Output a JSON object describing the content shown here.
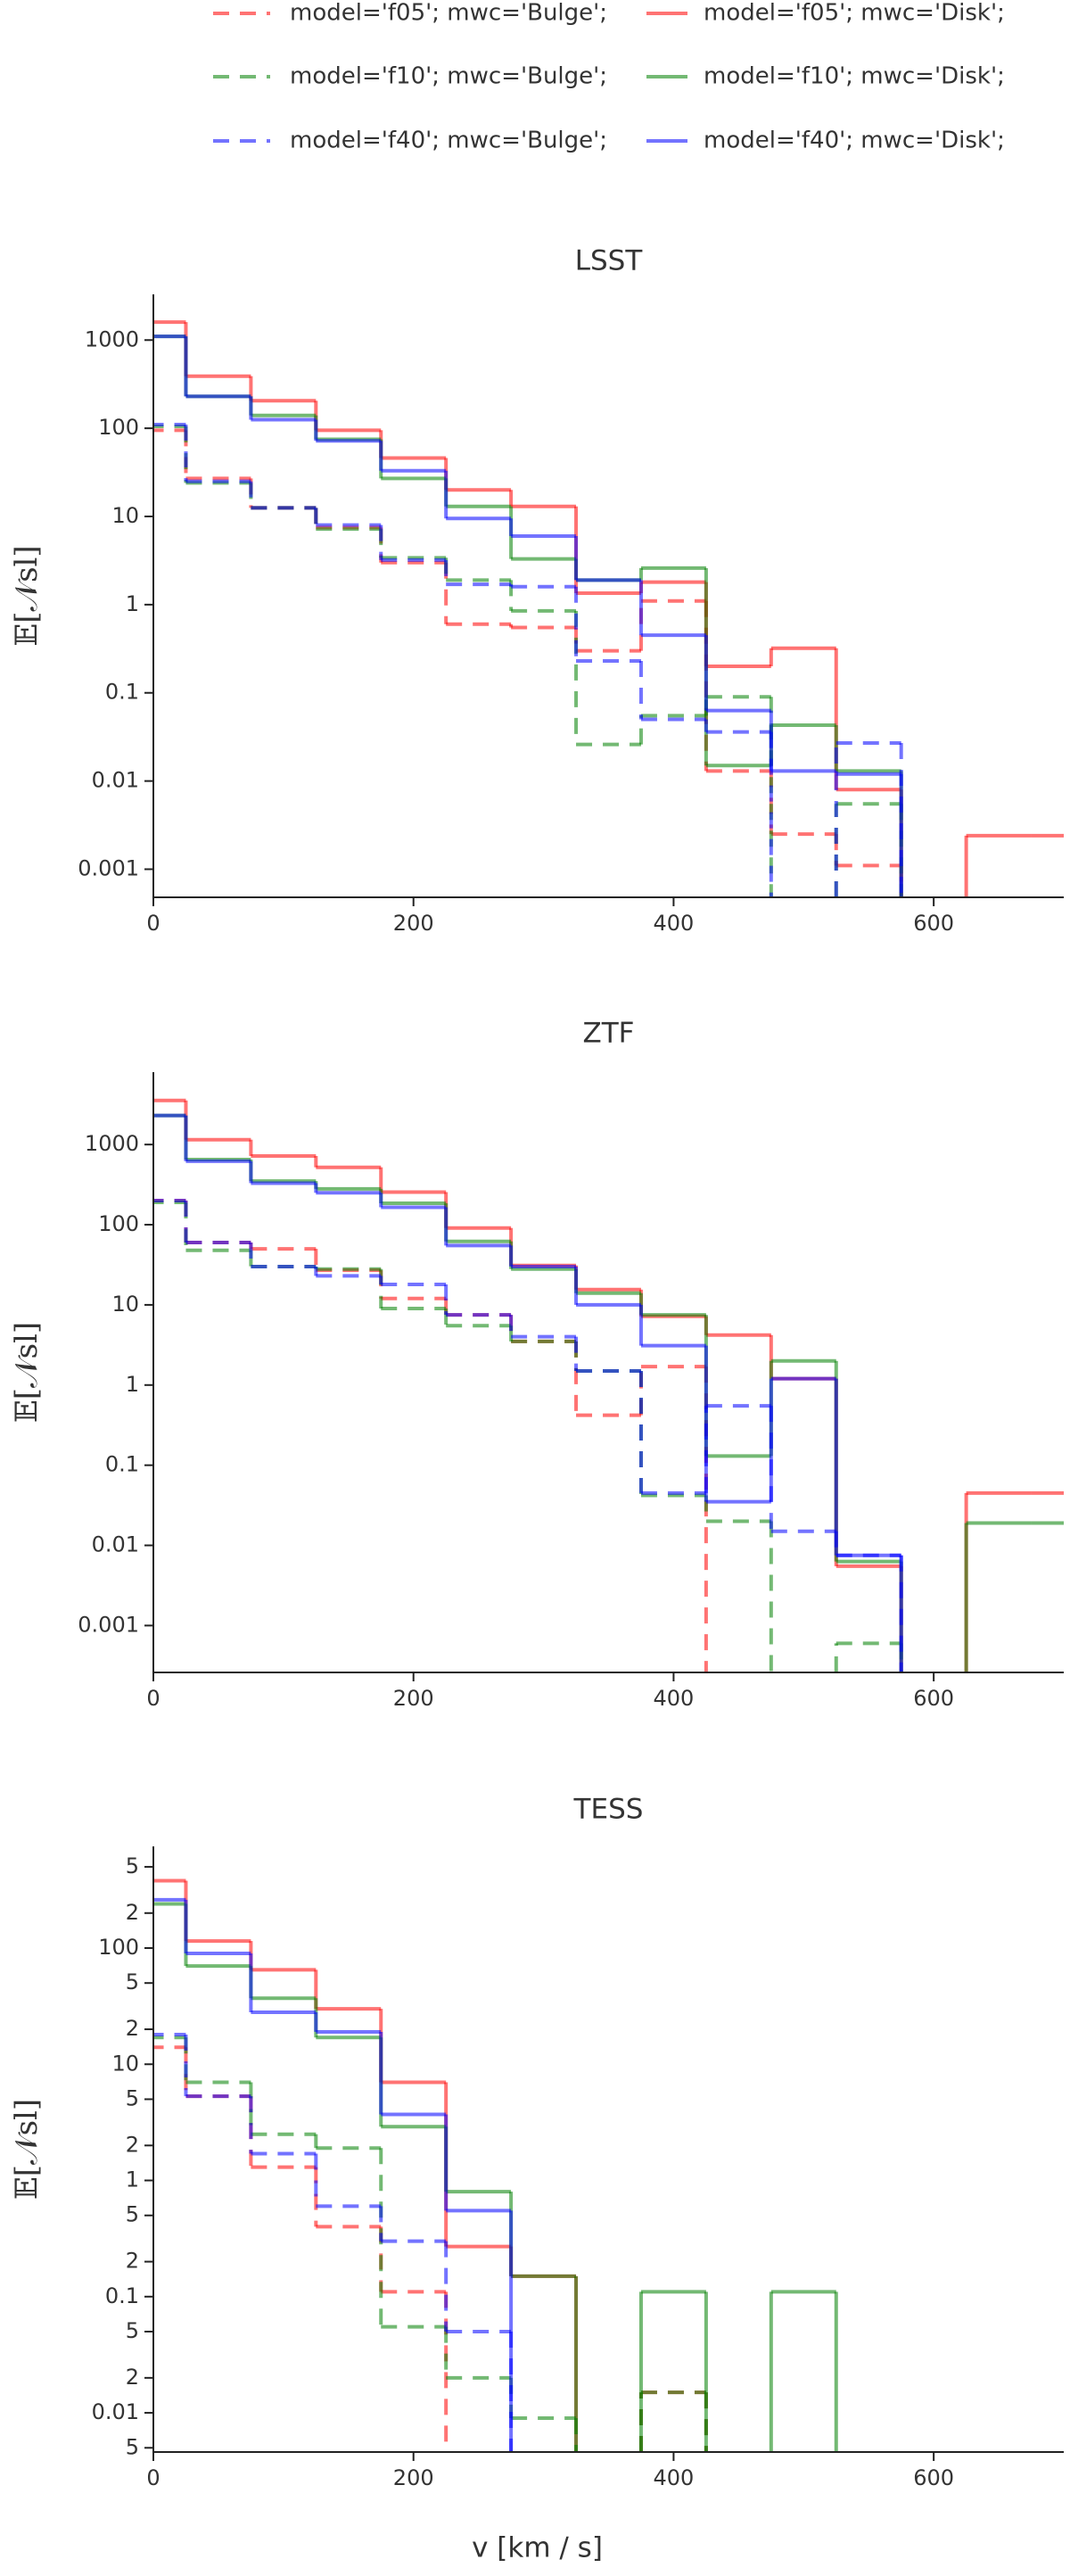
{
  "legend": [
    {
      "name": "model='f05'; mwc='Bulge';",
      "color": "#ff0000",
      "dash": "dash"
    },
    {
      "name": "model='f05'; mwc='Disk';",
      "color": "#ff0000",
      "dash": "solid"
    },
    {
      "name": "model='f10'; mwc='Bulge';",
      "color": "#008000",
      "dash": "dash"
    },
    {
      "name": "model='f10'; mwc='Disk';",
      "color": "#008000",
      "dash": "solid"
    },
    {
      "name": "model='f40'; mwc='Bulge';",
      "color": "#0000ff",
      "dash": "dash"
    },
    {
      "name": "model='f40'; mwc='Disk';",
      "color": "#0000ff",
      "dash": "solid"
    }
  ],
  "chart_data": [
    {
      "type": "step-histogram",
      "title": "LSST",
      "y_label": "𝔼[𝒩sl]",
      "log_y": true,
      "bins": [
        -25,
        25,
        75,
        125,
        175,
        225,
        275,
        325,
        375,
        425,
        475,
        525,
        575,
        625,
        675,
        725
      ],
      "xlim": [
        0,
        700
      ],
      "xticks": [
        0,
        200,
        400,
        600
      ],
      "ylim": [
        0.00048,
        3300
      ],
      "yticks": [
        0.001,
        0.01,
        0.1,
        1,
        10,
        100,
        1000
      ],
      "series": [
        {
          "values": [
            95,
            27,
            12.5,
            7.5,
            3,
            0.6,
            0.55,
            0.3,
            1.1,
            0.013,
            0.0025,
            0.0011,
            null,
            null,
            null
          ]
        },
        {
          "values": [
            1600,
            390,
            205,
            95,
            46,
            20,
            13,
            1.35,
            1.8,
            0.2,
            0.32,
            0.008,
            null,
            0.0024,
            0.0024
          ]
        },
        {
          "values": [
            105,
            24,
            12.5,
            7.2,
            3.4,
            1.9,
            0.85,
            0.026,
            0.055,
            0.09,
            null,
            0.0055,
            null,
            null,
            null
          ]
        },
        {
          "values": [
            1100,
            230,
            140,
            75,
            27,
            13,
            3.3,
            1.9,
            2.6,
            0.015,
            0.043,
            0.013,
            null,
            null,
            null
          ]
        },
        {
          "values": [
            110,
            25,
            12.5,
            8,
            3.2,
            1.7,
            1.6,
            0.23,
            0.05,
            0.036,
            null,
            0.027,
            null,
            null,
            null
          ]
        },
        {
          "values": [
            1100,
            230,
            125,
            72,
            33,
            9.5,
            6,
            1.9,
            0.45,
            0.063,
            0.013,
            0.012,
            null,
            null,
            null
          ]
        }
      ]
    },
    {
      "type": "step-histogram",
      "title": "ZTF",
      "y_label": "𝔼[𝒩sl]",
      "log_y": true,
      "bins": [
        -25,
        25,
        75,
        125,
        175,
        225,
        275,
        325,
        375,
        425,
        475,
        525,
        575,
        625,
        675,
        725
      ],
      "xlim": [
        0,
        700
      ],
      "xticks": [
        0,
        200,
        400,
        600
      ],
      "ylim": [
        0.00026,
        8000
      ],
      "yticks": [
        0.001,
        0.01,
        0.1,
        1,
        10,
        100,
        1000
      ],
      "series": [
        {
          "values": [
            200,
            60,
            50,
            27,
            12,
            7.5,
            3.5,
            0.42,
            1.7,
            null,
            null,
            null,
            null,
            null,
            null
          ]
        },
        {
          "values": [
            3550,
            1150,
            720,
            520,
            255,
            91,
            31,
            15.5,
            7.2,
            4.2,
            1.2,
            0.0055,
            null,
            0.045,
            0.045
          ]
        },
        {
          "values": [
            190,
            48,
            30,
            28,
            9,
            5.5,
            3.5,
            1.5,
            0.042,
            0.02,
            null,
            0.0006,
            null,
            null,
            null
          ]
        },
        {
          "values": [
            2300,
            650,
            350,
            280,
            185,
            62,
            28,
            14,
            7.5,
            0.13,
            2,
            0.0063,
            null,
            0.019,
            0.019
          ]
        },
        {
          "values": [
            200,
            60,
            30,
            23,
            18,
            7.5,
            4,
            1.5,
            0.045,
            0.55,
            0.015,
            0.0075,
            null,
            null,
            null
          ]
        },
        {
          "values": [
            2300,
            620,
            330,
            250,
            165,
            55,
            30,
            10,
            3.1,
            0.035,
            1.2,
            0.0075,
            null,
            null,
            null
          ]
        }
      ]
    },
    {
      "type": "step-histogram",
      "title": "TESS",
      "y_label": "𝔼[𝒩sl]",
      "x_label": "v [km / s]",
      "log_y": true,
      "bins": [
        -25,
        25,
        75,
        125,
        175,
        225,
        275,
        325,
        375,
        425,
        475,
        525,
        575,
        625,
        675,
        725
      ],
      "xlim": [
        0,
        700
      ],
      "xticks": [
        0,
        200,
        400,
        600
      ],
      "ylim": [
        0.0046,
        750
      ],
      "yticks": [
        {
          "value": 500,
          "label": "5"
        },
        {
          "value": 200,
          "label": "2"
        },
        100,
        {
          "value": 50,
          "label": "5"
        },
        {
          "value": 20,
          "label": "2"
        },
        10,
        5,
        2,
        1,
        {
          "value": 0.5,
          "label": "5"
        },
        {
          "value": 0.2,
          "label": "2"
        },
        0.1,
        {
          "value": 0.05,
          "label": "5"
        },
        {
          "value": 0.02,
          "label": "2"
        },
        0.01,
        {
          "value": 0.005,
          "label": "5"
        }
      ],
      "series": [
        {
          "values": [
            14,
            5.3,
            1.3,
            0.4,
            0.11,
            null,
            null,
            null,
            0.015,
            null,
            null,
            null,
            null,
            null,
            null
          ]
        },
        {
          "values": [
            380,
            115,
            65,
            30,
            7,
            0.27,
            0.15,
            null,
            null,
            null,
            null,
            null,
            null,
            null,
            null
          ]
        },
        {
          "values": [
            17,
            7,
            2.5,
            1.9,
            0.055,
            0.02,
            0.009,
            null,
            0.015,
            null,
            null,
            null,
            null,
            null,
            null
          ]
        },
        {
          "values": [
            240,
            70,
            37,
            17,
            2.9,
            0.8,
            0.15,
            null,
            0.11,
            null,
            0.11,
            null,
            null,
            null,
            null
          ]
        },
        {
          "values": [
            18,
            5.3,
            1.7,
            0.6,
            0.3,
            0.05,
            null,
            null,
            null,
            null,
            null,
            null,
            null,
            null,
            null
          ]
        },
        {
          "values": [
            260,
            90,
            28,
            19,
            3.7,
            0.55,
            null,
            null,
            null,
            null,
            null,
            null,
            null,
            null,
            null
          ]
        }
      ]
    }
  ]
}
